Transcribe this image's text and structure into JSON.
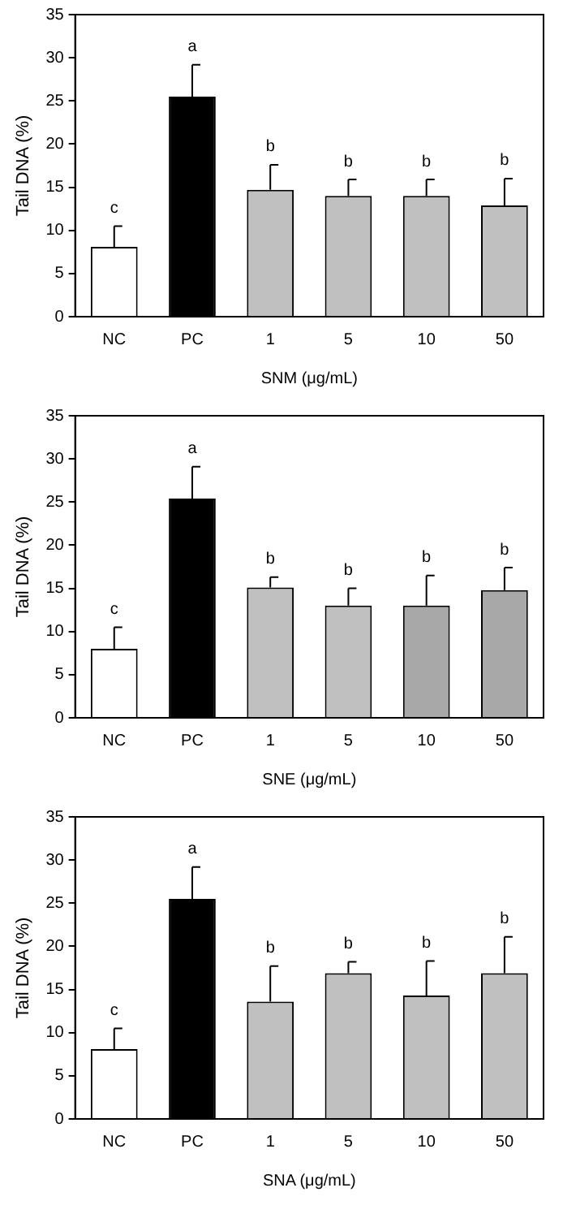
{
  "chart_data": [
    {
      "type": "bar",
      "xlabel": "SNM (μg/mL)",
      "ylabel": "Tail DNA (%)",
      "categories": [
        "NC",
        "PC",
        "1",
        "5",
        "10",
        "50"
      ],
      "values": [
        8.1,
        25.5,
        14.7,
        14.0,
        14.0,
        12.9
      ],
      "colors": [
        "#ffffff",
        "#000000",
        "#c0c0c0",
        "#c0c0c0",
        "#c0c0c0",
        "#c0c0c0"
      ],
      "errors": [
        [
          8.1,
          10.5
        ],
        [
          25.5,
          29.2
        ],
        [
          14.7,
          17.6
        ],
        [
          14.0,
          15.9
        ],
        [
          14.0,
          15.9
        ],
        [
          12.9,
          16.0
        ]
      ],
      "ylim": [
        0,
        35
      ],
      "yticks": [
        0,
        5,
        10,
        15,
        20,
        25,
        30,
        35
      ],
      "grid": false,
      "legend": false,
      "annotations": [
        {
          "text": "c",
          "x": "NC",
          "y": 10.5
        },
        {
          "text": "a",
          "x": "PC",
          "y": 29.2
        },
        {
          "text": "b",
          "x": "1",
          "y": 17.6
        },
        {
          "text": "b",
          "x": "5",
          "y": 15.9
        },
        {
          "text": "b",
          "x": "10",
          "y": 15.9
        },
        {
          "text": "b",
          "x": "50",
          "y": 16.0
        }
      ]
    },
    {
      "type": "bar",
      "xlabel": "SNE (μg/mL)",
      "ylabel": "Tail DNA (%)",
      "categories": [
        "NC",
        "PC",
        "1",
        "5",
        "10",
        "50"
      ],
      "values": [
        8.0,
        25.4,
        15.1,
        13.0,
        13.0,
        14.8
      ],
      "colors": [
        "#ffffff",
        "#000000",
        "#c0c0c0",
        "#c0c0c0",
        "#a8a8a8",
        "#a8a8a8"
      ],
      "errors": [
        [
          8.0,
          10.5
        ],
        [
          25.4,
          29.1
        ],
        [
          15.1,
          16.3
        ],
        [
          13.0,
          15.0
        ],
        [
          13.0,
          16.5
        ],
        [
          14.8,
          17.4
        ]
      ],
      "ylim": [
        0,
        35
      ],
      "yticks": [
        0,
        5,
        10,
        15,
        20,
        25,
        30,
        35
      ],
      "grid": false,
      "legend": false,
      "annotations": [
        {
          "text": "c",
          "x": "NC",
          "y": 10.5
        },
        {
          "text": "a",
          "x": "PC",
          "y": 29.1
        },
        {
          "text": "b",
          "x": "1",
          "y": 16.3
        },
        {
          "text": "b",
          "x": "5",
          "y": 15.0
        },
        {
          "text": "b",
          "x": "10",
          "y": 16.5
        },
        {
          "text": "b",
          "x": "50",
          "y": 17.4
        }
      ]
    },
    {
      "type": "bar",
      "xlabel": "SNA (μg/mL)",
      "ylabel": "Tail DNA (%)",
      "categories": [
        "NC",
        "PC",
        "1",
        "5",
        "10",
        "50"
      ],
      "values": [
        8.1,
        25.5,
        13.6,
        16.9,
        14.3,
        16.9
      ],
      "colors": [
        "#ffffff",
        "#000000",
        "#c0c0c0",
        "#c0c0c0",
        "#c0c0c0",
        "#c0c0c0"
      ],
      "errors": [
        [
          8.1,
          10.5
        ],
        [
          25.5,
          29.2
        ],
        [
          13.6,
          17.7
        ],
        [
          16.9,
          18.2
        ],
        [
          14.3,
          18.3
        ],
        [
          16.9,
          21.1
        ]
      ],
      "ylim": [
        0,
        35
      ],
      "yticks": [
        0,
        5,
        10,
        15,
        20,
        25,
        30,
        35
      ],
      "grid": false,
      "legend": false,
      "annotations": [
        {
          "text": "c",
          "x": "NC",
          "y": 10.5
        },
        {
          "text": "a",
          "x": "PC",
          "y": 29.2
        },
        {
          "text": "b",
          "x": "1",
          "y": 17.7
        },
        {
          "text": "b",
          "x": "5",
          "y": 18.2
        },
        {
          "text": "b",
          "x": "10",
          "y": 18.3
        },
        {
          "text": "b",
          "x": "50",
          "y": 21.1
        }
      ]
    }
  ]
}
